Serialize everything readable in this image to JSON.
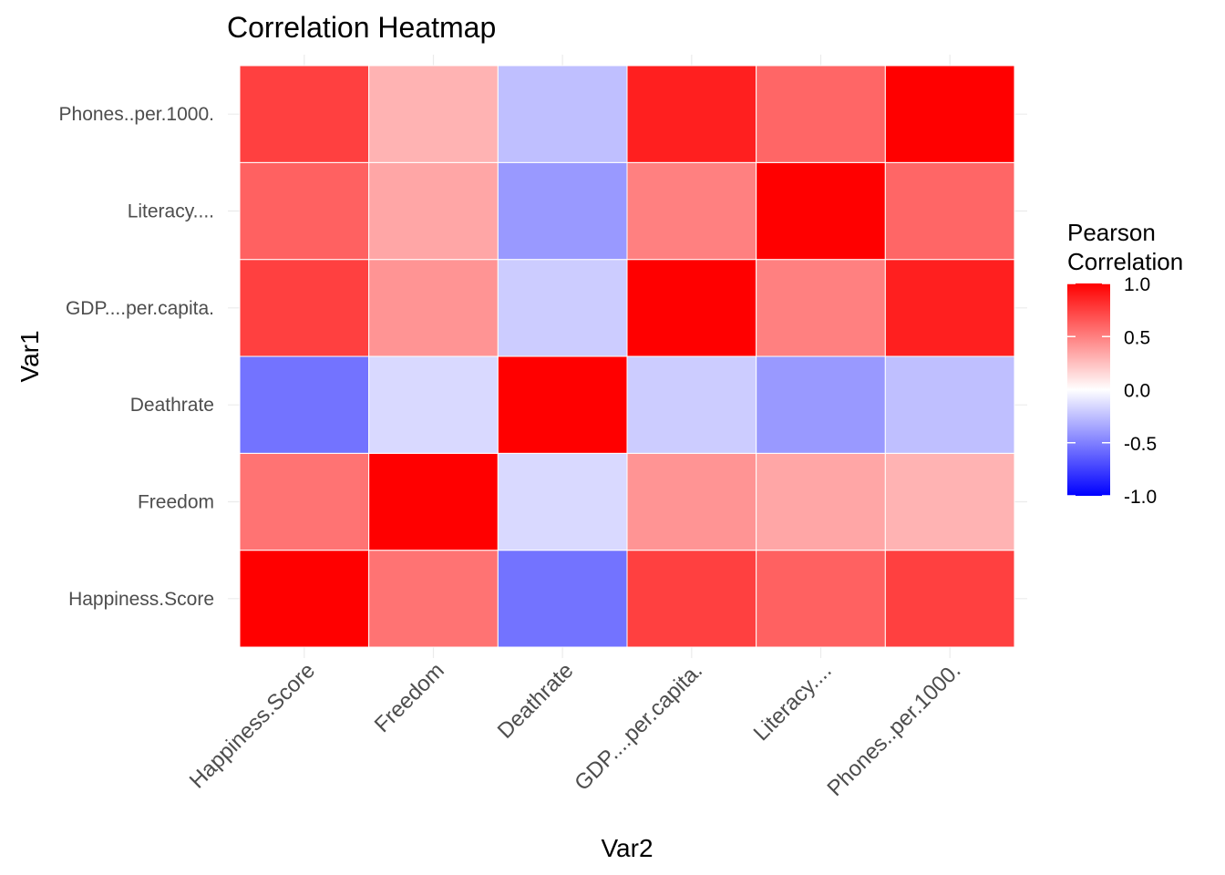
{
  "chart_data": {
    "type": "heatmap",
    "title": "Correlation Heatmap",
    "xlabel": "Var2",
    "ylabel": "Var1",
    "x_categories": [
      "Happiness.Score",
      "Freedom",
      "Deathrate",
      "GDP....per.capita.",
      "Literacy....",
      "Phones..per.1000."
    ],
    "y_categories": [
      "Happiness.Score",
      "Freedom",
      "Deathrate",
      "GDP....per.capita.",
      "Literacy....",
      "Phones..per.1000."
    ],
    "values": [
      [
        1.0,
        0.55,
        -0.55,
        0.75,
        0.62,
        0.75
      ],
      [
        0.55,
        1.0,
        -0.15,
        0.42,
        0.35,
        0.3
      ],
      [
        -0.55,
        -0.15,
        1.0,
        -0.2,
        -0.4,
        -0.25
      ],
      [
        0.75,
        0.42,
        -0.2,
        1.0,
        0.5,
        0.88
      ],
      [
        0.62,
        0.35,
        -0.4,
        0.5,
        1.0,
        0.6
      ],
      [
        0.75,
        0.3,
        -0.25,
        0.88,
        0.6,
        1.0
      ]
    ],
    "color_scale": {
      "low": "#0000ff",
      "mid": "#ffffff",
      "high": "#ff0000",
      "limits": [
        -1.0,
        1.0
      ]
    },
    "legend": {
      "title_lines": [
        "Pearson",
        "Correlation"
      ],
      "tick_values": [
        1.0,
        0.5,
        0.0,
        -0.5,
        -1.0
      ],
      "tick_labels": [
        "1.0",
        "0.5",
        "0.0",
        "-0.5",
        "-1.0"
      ],
      "position": "right"
    },
    "grid": true
  }
}
